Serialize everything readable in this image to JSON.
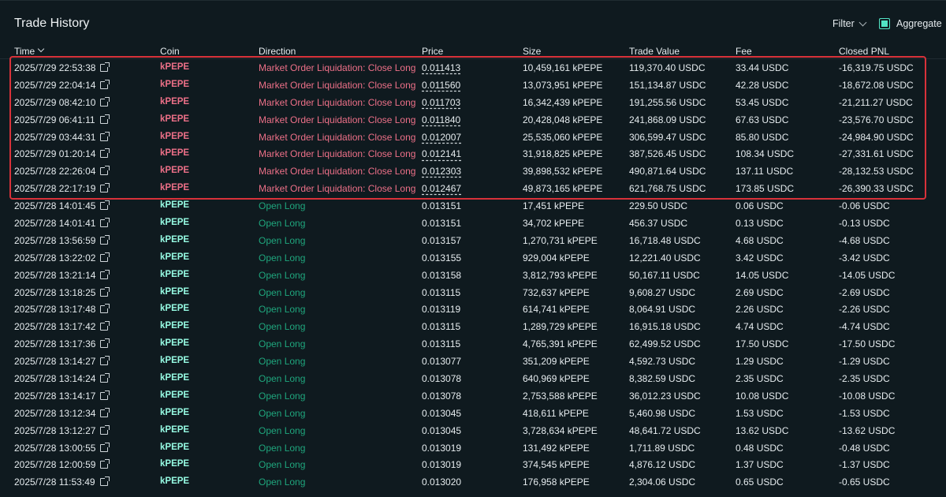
{
  "header": {
    "title": "Trade History",
    "filter_label": "Filter",
    "aggregate_label": "Aggregate"
  },
  "columns": [
    "Time",
    "Coin",
    "Direction",
    "Price",
    "Size",
    "Trade Value",
    "Fee",
    "Closed PNL"
  ],
  "rows": [
    {
      "time": "2025/7/29 22:53:38",
      "coin": "kPEPE",
      "direction": "Market Order Liquidation: Close Long",
      "price": "0.011413",
      "size": "10,459,161 kPEPE",
      "value": "119,370.40 USDC",
      "fee": "33.44 USDC",
      "pnl": "-16,319.75 USDC",
      "kind": "short"
    },
    {
      "time": "2025/7/29 22:04:14",
      "coin": "kPEPE",
      "direction": "Market Order Liquidation: Close Long",
      "price": "0.011560",
      "size": "13,073,951 kPEPE",
      "value": "151,134.87 USDC",
      "fee": "42.28 USDC",
      "pnl": "-18,672.08 USDC",
      "kind": "short"
    },
    {
      "time": "2025/7/29 08:42:10",
      "coin": "kPEPE",
      "direction": "Market Order Liquidation: Close Long",
      "price": "0.011703",
      "size": "16,342,439 kPEPE",
      "value": "191,255.56 USDC",
      "fee": "53.45 USDC",
      "pnl": "-21,211.27 USDC",
      "kind": "short"
    },
    {
      "time": "2025/7/29 06:41:11",
      "coin": "kPEPE",
      "direction": "Market Order Liquidation: Close Long",
      "price": "0.011840",
      "size": "20,428,048 kPEPE",
      "value": "241,868.09 USDC",
      "fee": "67.63 USDC",
      "pnl": "-23,576.70 USDC",
      "kind": "short"
    },
    {
      "time": "2025/7/29 03:44:31",
      "coin": "kPEPE",
      "direction": "Market Order Liquidation: Close Long",
      "price": "0.012007",
      "size": "25,535,060 kPEPE",
      "value": "306,599.47 USDC",
      "fee": "85.80 USDC",
      "pnl": "-24,984.90 USDC",
      "kind": "short"
    },
    {
      "time": "2025/7/29 01:20:14",
      "coin": "kPEPE",
      "direction": "Market Order Liquidation: Close Long",
      "price": "0.012141",
      "size": "31,918,825 kPEPE",
      "value": "387,526.45 USDC",
      "fee": "108.34 USDC",
      "pnl": "-27,331.61 USDC",
      "kind": "short"
    },
    {
      "time": "2025/7/28 22:26:04",
      "coin": "kPEPE",
      "direction": "Market Order Liquidation: Close Long",
      "price": "0.012303",
      "size": "39,898,532 kPEPE",
      "value": "490,871.64 USDC",
      "fee": "137.11 USDC",
      "pnl": "-28,132.53 USDC",
      "kind": "short"
    },
    {
      "time": "2025/7/28 22:17:19",
      "coin": "kPEPE",
      "direction": "Market Order Liquidation: Close Long",
      "price": "0.012467",
      "size": "49,873,165 kPEPE",
      "value": "621,768.75 USDC",
      "fee": "173.85 USDC",
      "pnl": "-26,390.33 USDC",
      "kind": "short"
    },
    {
      "time": "2025/7/28 14:01:45",
      "coin": "kPEPE",
      "direction": "Open Long",
      "price": "0.013151",
      "size": "17,451 kPEPE",
      "value": "229.50 USDC",
      "fee": "0.06 USDC",
      "pnl": "-0.06 USDC",
      "kind": "long"
    },
    {
      "time": "2025/7/28 14:01:41",
      "coin": "kPEPE",
      "direction": "Open Long",
      "price": "0.013151",
      "size": "34,702 kPEPE",
      "value": "456.37 USDC",
      "fee": "0.13 USDC",
      "pnl": "-0.13 USDC",
      "kind": "long"
    },
    {
      "time": "2025/7/28 13:56:59",
      "coin": "kPEPE",
      "direction": "Open Long",
      "price": "0.013157",
      "size": "1,270,731 kPEPE",
      "value": "16,718.48 USDC",
      "fee": "4.68 USDC",
      "pnl": "-4.68 USDC",
      "kind": "long"
    },
    {
      "time": "2025/7/28 13:22:02",
      "coin": "kPEPE",
      "direction": "Open Long",
      "price": "0.013155",
      "size": "929,004 kPEPE",
      "value": "12,221.40 USDC",
      "fee": "3.42 USDC",
      "pnl": "-3.42 USDC",
      "kind": "long"
    },
    {
      "time": "2025/7/28 13:21:14",
      "coin": "kPEPE",
      "direction": "Open Long",
      "price": "0.013158",
      "size": "3,812,793 kPEPE",
      "value": "50,167.11 USDC",
      "fee": "14.05 USDC",
      "pnl": "-14.05 USDC",
      "kind": "long"
    },
    {
      "time": "2025/7/28 13:18:25",
      "coin": "kPEPE",
      "direction": "Open Long",
      "price": "0.013115",
      "size": "732,637 kPEPE",
      "value": "9,608.27 USDC",
      "fee": "2.69 USDC",
      "pnl": "-2.69 USDC",
      "kind": "long"
    },
    {
      "time": "2025/7/28 13:17:48",
      "coin": "kPEPE",
      "direction": "Open Long",
      "price": "0.013119",
      "size": "614,741 kPEPE",
      "value": "8,064.91 USDC",
      "fee": "2.26 USDC",
      "pnl": "-2.26 USDC",
      "kind": "long"
    },
    {
      "time": "2025/7/28 13:17:42",
      "coin": "kPEPE",
      "direction": "Open Long",
      "price": "0.013115",
      "size": "1,289,729 kPEPE",
      "value": "16,915.18 USDC",
      "fee": "4.74 USDC",
      "pnl": "-4.74 USDC",
      "kind": "long"
    },
    {
      "time": "2025/7/28 13:17:36",
      "coin": "kPEPE",
      "direction": "Open Long",
      "price": "0.013115",
      "size": "4,765,391 kPEPE",
      "value": "62,499.52 USDC",
      "fee": "17.50 USDC",
      "pnl": "-17.50 USDC",
      "kind": "long"
    },
    {
      "time": "2025/7/28 13:14:27",
      "coin": "kPEPE",
      "direction": "Open Long",
      "price": "0.013077",
      "size": "351,209 kPEPE",
      "value": "4,592.73 USDC",
      "fee": "1.29 USDC",
      "pnl": "-1.29 USDC",
      "kind": "long"
    },
    {
      "time": "2025/7/28 13:14:24",
      "coin": "kPEPE",
      "direction": "Open Long",
      "price": "0.013078",
      "size": "640,969 kPEPE",
      "value": "8,382.59 USDC",
      "fee": "2.35 USDC",
      "pnl": "-2.35 USDC",
      "kind": "long"
    },
    {
      "time": "2025/7/28 13:14:17",
      "coin": "kPEPE",
      "direction": "Open Long",
      "price": "0.013078",
      "size": "2,753,588 kPEPE",
      "value": "36,012.23 USDC",
      "fee": "10.08 USDC",
      "pnl": "-10.08 USDC",
      "kind": "long"
    },
    {
      "time": "2025/7/28 13:12:34",
      "coin": "kPEPE",
      "direction": "Open Long",
      "price": "0.013045",
      "size": "418,611 kPEPE",
      "value": "5,460.98 USDC",
      "fee": "1.53 USDC",
      "pnl": "-1.53 USDC",
      "kind": "long"
    },
    {
      "time": "2025/7/28 13:12:27",
      "coin": "kPEPE",
      "direction": "Open Long",
      "price": "0.013045",
      "size": "3,728,634 kPEPE",
      "value": "48,641.72 USDC",
      "fee": "13.62 USDC",
      "pnl": "-13.62 USDC",
      "kind": "long"
    },
    {
      "time": "2025/7/28 13:00:55",
      "coin": "kPEPE",
      "direction": "Open Long",
      "price": "0.013019",
      "size": "131,492 kPEPE",
      "value": "1,711.89 USDC",
      "fee": "0.48 USDC",
      "pnl": "-0.48 USDC",
      "kind": "long"
    },
    {
      "time": "2025/7/28 12:00:59",
      "coin": "kPEPE",
      "direction": "Open Long",
      "price": "0.013019",
      "size": "374,545 kPEPE",
      "value": "4,876.12 USDC",
      "fee": "1.37 USDC",
      "pnl": "-1.37 USDC",
      "kind": "long"
    },
    {
      "time": "2025/7/28 11:53:49",
      "coin": "kPEPE",
      "direction": "Open Long",
      "price": "0.013020",
      "size": "176,958 kPEPE",
      "value": "2,304.06 USDC",
      "fee": "0.65 USDC",
      "pnl": "-0.65 USDC",
      "kind": "long"
    }
  ],
  "colors": {
    "background": "#0f1a1f",
    "short": "#ed7088",
    "long": "#1fa67d",
    "coin_long": "#97fce4",
    "highlight_box": "#d8323a",
    "checkbox": "#52e3c4"
  },
  "icons": {
    "time_link": "external-link-icon",
    "filter": "chevron-down-icon",
    "sort": "sort-down-icon"
  }
}
